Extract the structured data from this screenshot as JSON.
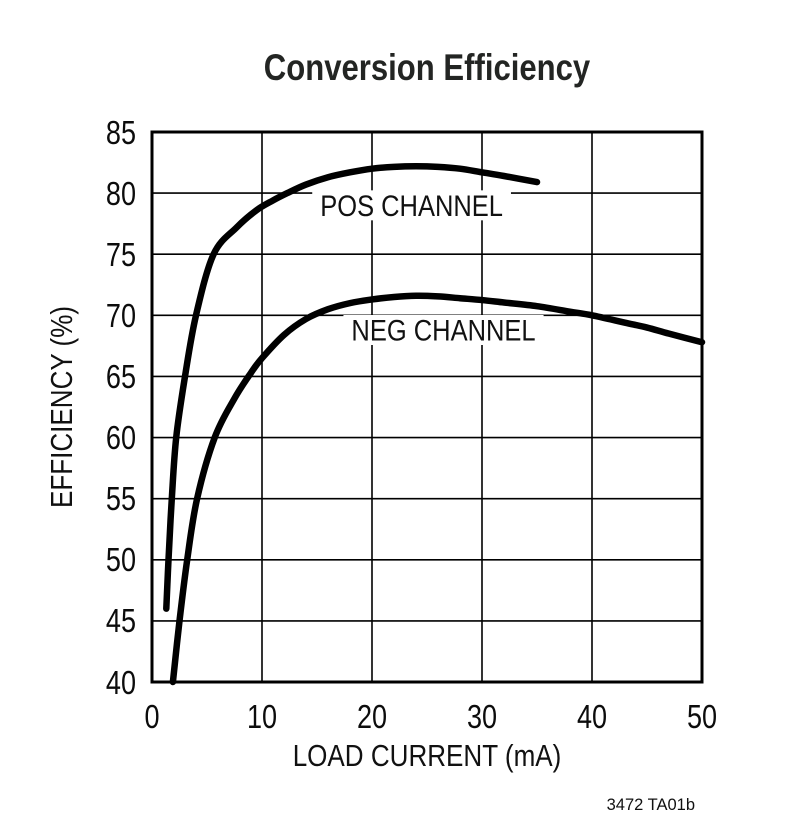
{
  "page": {
    "title": "Conversion Efficiency",
    "footer_code": "3472 TA01b"
  },
  "chart_data": {
    "type": "line",
    "title": "Conversion Efficiency",
    "xlabel": "LOAD CURRENT (mA)",
    "ylabel": "EFFICIENCY (%)",
    "xlim": [
      0,
      50
    ],
    "ylim": [
      40,
      85
    ],
    "x_ticks": [
      0,
      10,
      20,
      30,
      40,
      50
    ],
    "y_ticks": [
      40,
      45,
      50,
      55,
      60,
      65,
      70,
      75,
      80,
      85
    ],
    "grid": true,
    "legend_position": "inline-labels-on-curves",
    "colors": {
      "curve": "#000000",
      "grid": "#000000",
      "frame": "#000000",
      "text": "#111111"
    },
    "annotation": "3472 TA01b",
    "series": [
      {
        "name": "POS CHANNEL",
        "label_at": {
          "x": 23.6,
          "y": 79.0
        },
        "points": [
          [
            1.3,
            46.0
          ],
          [
            1.5,
            50.0
          ],
          [
            1.8,
            55.0
          ],
          [
            2.2,
            60.0
          ],
          [
            3.0,
            65.0
          ],
          [
            4.0,
            70.0
          ],
          [
            5.6,
            75.0
          ],
          [
            7.7,
            77.2
          ],
          [
            9.5,
            78.6
          ],
          [
            11.0,
            79.4
          ],
          [
            12.3,
            80.0
          ],
          [
            14.0,
            80.7
          ],
          [
            16.0,
            81.3
          ],
          [
            18.0,
            81.7
          ],
          [
            20.0,
            82.0
          ],
          [
            22.0,
            82.15
          ],
          [
            24.0,
            82.2
          ],
          [
            26.0,
            82.15
          ],
          [
            28.0,
            82.0
          ],
          [
            30.0,
            81.7
          ],
          [
            32.0,
            81.4
          ],
          [
            35.0,
            80.9
          ]
        ]
      },
      {
        "name": "NEG CHANNEL",
        "label_at": {
          "x": 26.5,
          "y": 68.8
        },
        "points": [
          [
            1.9,
            40.0
          ],
          [
            2.5,
            45.0
          ],
          [
            3.2,
            50.0
          ],
          [
            4.1,
            55.0
          ],
          [
            5.7,
            60.0
          ],
          [
            7.5,
            63.2
          ],
          [
            9.0,
            65.3
          ],
          [
            10.0,
            66.5
          ],
          [
            12.0,
            68.4
          ],
          [
            14.0,
            69.7
          ],
          [
            16.0,
            70.5
          ],
          [
            18.0,
            71.0
          ],
          [
            20.0,
            71.3
          ],
          [
            22.0,
            71.5
          ],
          [
            24.0,
            71.6
          ],
          [
            26.0,
            71.55
          ],
          [
            28.0,
            71.4
          ],
          [
            30.0,
            71.25
          ],
          [
            32.0,
            71.05
          ],
          [
            35.0,
            70.75
          ],
          [
            38.0,
            70.3
          ],
          [
            40.0,
            70.0
          ],
          [
            43.0,
            69.4
          ],
          [
            45.0,
            69.0
          ],
          [
            47.0,
            68.5
          ],
          [
            50.0,
            67.8
          ]
        ]
      }
    ]
  }
}
